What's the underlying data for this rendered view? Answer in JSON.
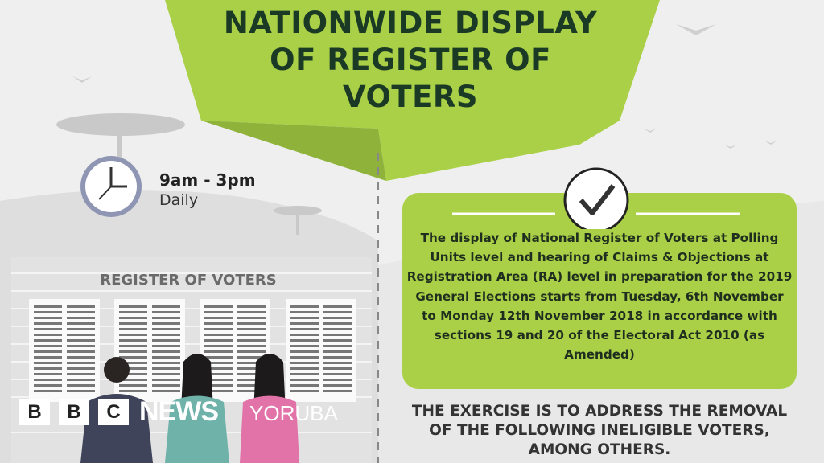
{
  "banner": {
    "title_lines": [
      "NATIONWIDE DISPLAY",
      "OF REGISTER OF",
      "VOTERS"
    ],
    "color": "#a9d046"
  },
  "schedule": {
    "hours": "9am - 3pm",
    "frequency": "Daily",
    "icon": "clock-icon"
  },
  "wall": {
    "title": "REGISTER OF VOTERS"
  },
  "info_box": {
    "icon": "checkmark-icon",
    "text": "The display of National Register of Voters at Polling Units level and hearing of Claims & Objections at Registration Area (RA) level in preparation for the 2019 General Elections starts from Tuesday, 6th November to Monday 12th November 2018 in accordance with sections 19 and 20 of the Electoral Act 2010 (as Amended)"
  },
  "heading": "THE EXERCISE IS TO ADDRESS THE REMOVAL OF THE FOLLOWING INELIGIBLE VOTERS, AMONG OTHERS.",
  "watermark": {
    "b1": "B",
    "b2": "B",
    "c": "C",
    "news": "NEWS",
    "service": "YORUBA"
  }
}
